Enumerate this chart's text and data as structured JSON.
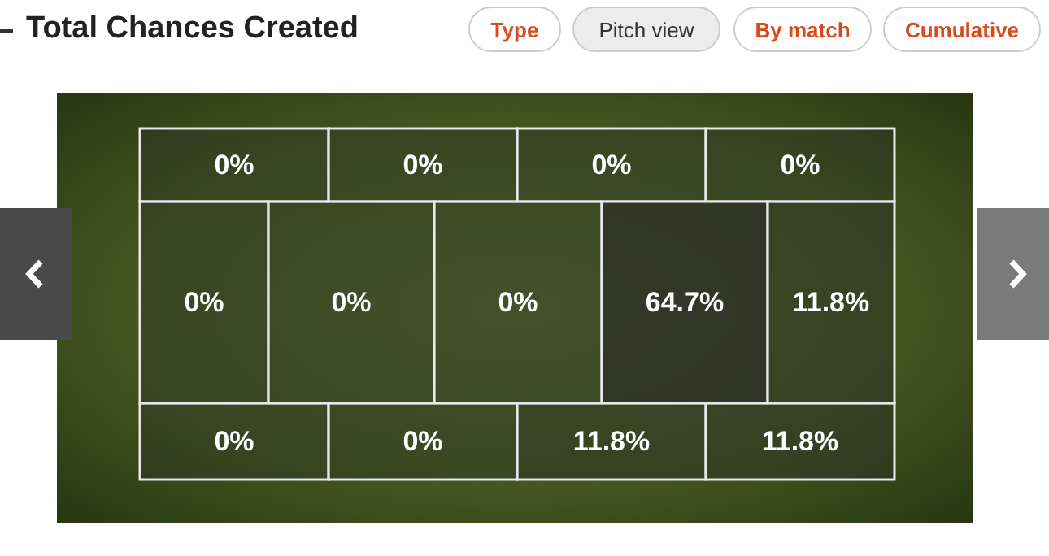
{
  "chart_data": {
    "type": "other",
    "title": "Total Chances Created",
    "annotations": [
      "Type",
      "Pitch view",
      "By match",
      "Cumulative"
    ],
    "categories": [
      null,
      null,
      null,
      null,
      null,
      null,
      null,
      null,
      null,
      null,
      null,
      null,
      null
    ],
    "values": [
      0,
      0,
      0,
      0,
      0,
      0,
      0,
      64.7,
      11.8,
      0,
      0,
      11.8,
      11.8
    ],
    "value_labels": [
      "0%",
      "0%",
      "0%",
      "0%",
      "0%",
      "0%",
      "0%",
      "64.7%",
      "11.8%",
      "0%",
      "0%",
      "11.8%",
      "11.8%"
    ]
  }
}
